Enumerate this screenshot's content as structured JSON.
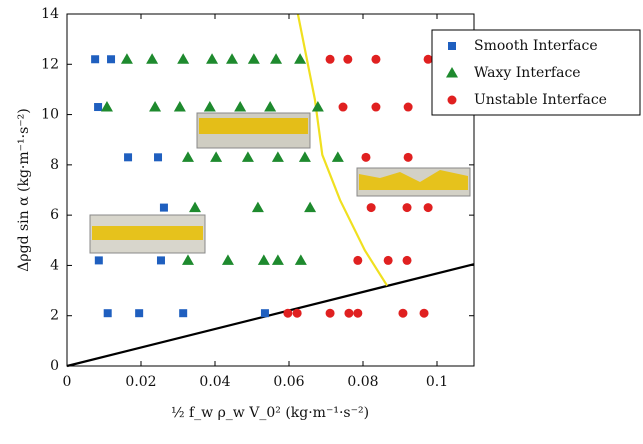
{
  "chart_data": {
    "type": "scatter",
    "xlabel": "½ f_w ρ_w V_0² (kg·m⁻¹·s⁻²)",
    "ylabel": "Δρgd sin α (kg·m⁻¹·s⁻²)",
    "xlim": [
      0,
      0.11
    ],
    "ylim": [
      0,
      14
    ],
    "xticks": [
      0,
      0.02,
      0.04,
      0.06,
      0.08,
      0.1
    ],
    "yticks": [
      0,
      2,
      4,
      6,
      8,
      10,
      12,
      14
    ],
    "legend": "upper right",
    "series": [
      {
        "name": "Smooth Interface",
        "color": "#1f5fbf",
        "marker": "square",
        "x": [
          0.0076,
          0.0119,
          0.0084,
          0.0165,
          0.0246,
          0.0262,
          0.0086,
          0.0254,
          0.011,
          0.0195,
          0.0314,
          0.0535
        ],
        "values": [
          12.2,
          12.2,
          10.3,
          8.3,
          8.3,
          6.3,
          4.2,
          4.2,
          2.1,
          2.1,
          2.1,
          2.1
        ]
      },
      {
        "name": "Waxy Interface",
        "color": "#1e8a2e",
        "marker": "triangle",
        "x": [
          0.0162,
          0.023,
          0.0314,
          0.0392,
          0.0446,
          0.0505,
          0.0565,
          0.063,
          0.0108,
          0.0238,
          0.0305,
          0.0386,
          0.0468,
          0.0549,
          0.0678,
          0.0327,
          0.0403,
          0.0489,
          0.057,
          0.0643,
          0.0732,
          0.0346,
          0.0516,
          0.0657,
          0.0327,
          0.0435,
          0.0532,
          0.057,
          0.0632
        ],
        "values": [
          12.2,
          12.2,
          12.2,
          12.2,
          12.2,
          12.2,
          12.2,
          12.2,
          10.3,
          10.3,
          10.3,
          10.3,
          10.3,
          10.3,
          10.3,
          8.3,
          8.3,
          8.3,
          8.3,
          8.3,
          8.3,
          6.3,
          6.3,
          6.3,
          4.2,
          4.2,
          4.2,
          4.2,
          4.2
        ]
      },
      {
        "name": "Unstable Interface",
        "color": "#e02020",
        "marker": "circle",
        "x": [
          0.0711,
          0.0759,
          0.0835,
          0.0976,
          0.0746,
          0.0835,
          0.0922,
          0.0808,
          0.0922,
          0.0822,
          0.0919,
          0.0976,
          0.0786,
          0.0868,
          0.0919,
          0.0597,
          0.0622,
          0.0711,
          0.0762,
          0.0786,
          0.0908,
          0.0965
        ],
        "values": [
          12.2,
          12.2,
          12.2,
          12.2,
          10.3,
          10.3,
          10.3,
          8.3,
          8.3,
          6.3,
          6.3,
          6.3,
          4.2,
          4.2,
          4.2,
          2.1,
          2.1,
          2.1,
          2.1,
          2.1,
          2.1,
          2.1
        ]
      }
    ],
    "lines": [
      {
        "color": "#000000",
        "x": [
          0,
          0.11
        ],
        "values": [
          0,
          4.05
        ]
      },
      {
        "color": "#f0e020",
        "x": [
          0.0624,
          0.067,
          0.069,
          0.0738,
          0.0805,
          0.0865
        ],
        "values": [
          14,
          10.6,
          8.4,
          6.6,
          4.6,
          3.2
        ]
      }
    ]
  }
}
